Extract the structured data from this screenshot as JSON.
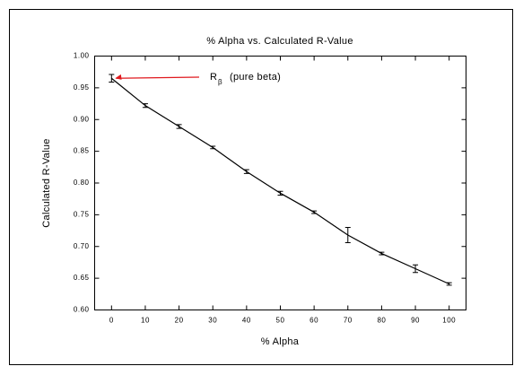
{
  "chart_data": {
    "type": "line",
    "title": "% Alpha vs. Calculated R-Value",
    "x_label": "% Alpha",
    "y_label": "Calculated R-Value",
    "x": [
      0,
      10,
      20,
      30,
      40,
      50,
      60,
      70,
      80,
      90,
      100
    ],
    "series": [
      {
        "color": "#000000",
        "values": [
          0.965,
          0.922,
          0.889,
          0.856,
          0.818,
          0.784,
          0.754,
          0.718,
          0.689,
          0.665,
          0.641
        ],
        "errors": [
          0.006,
          0.003,
          0.003,
          0.002,
          0.003,
          0.003,
          0.002,
          0.012,
          0.002,
          0.006,
          0.002
        ]
      }
    ],
    "annotation": {
      "text": "R",
      "sub": "β",
      "rest": "(pure beta)",
      "color": "#e0191e"
    },
    "xlim": [
      -5,
      105
    ],
    "xticks": [
      0,
      10,
      20,
      30,
      40,
      50,
      60,
      70,
      80,
      90,
      100
    ],
    "ylim": [
      0.6,
      1.0
    ],
    "yticks": [
      {
        "value": 0.6,
        "label": "0.60"
      },
      {
        "value": 0.65,
        "label": "0.65"
      },
      {
        "value": 0.7,
        "label": "0.70"
      },
      {
        "value": 0.75,
        "label": "0.75"
      },
      {
        "value": 0.8,
        "label": "0.80"
      },
      {
        "value": 0.85,
        "label": "0.85"
      },
      {
        "value": 0.9,
        "label": "0.90"
      },
      {
        "value": 0.95,
        "label": "0.95"
      },
      {
        "value": 1.0,
        "label": "1.00"
      }
    ]
  }
}
